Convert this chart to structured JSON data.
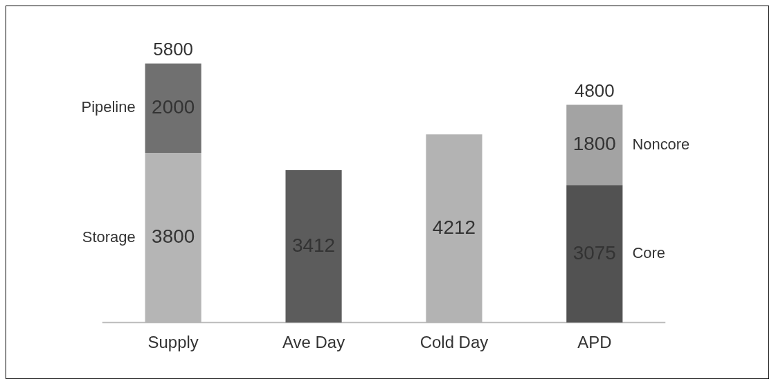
{
  "chart_data": {
    "type": "bar",
    "stacked": true,
    "categories": [
      "Supply",
      "Ave Day",
      "Cold Day",
      "APD"
    ],
    "series": [
      {
        "name": "Storage",
        "color": "#b5b5b5",
        "values": [
          3800,
          null,
          null,
          null
        ]
      },
      {
        "name": "Pipeline",
        "color": "#707070",
        "values": [
          2000,
          null,
          null,
          null
        ]
      },
      {
        "colors": [
          "#5c5c5c",
          "#5c5c5c",
          "#b3b3b3",
          "#5c5c5c"
        ],
        "values": [
          null,
          3412,
          4212,
          null
        ]
      },
      {
        "name": "Core",
        "color": "#525252",
        "values": [
          null,
          null,
          null,
          3075
        ]
      },
      {
        "name": "Noncore",
        "color": "#a3a3a3",
        "values": [
          null,
          null,
          null,
          1800
        ]
      }
    ],
    "annotations": [
      "5800",
      "4800"
    ],
    "data_labels": true,
    "legend": false,
    "grid": false
  }
}
